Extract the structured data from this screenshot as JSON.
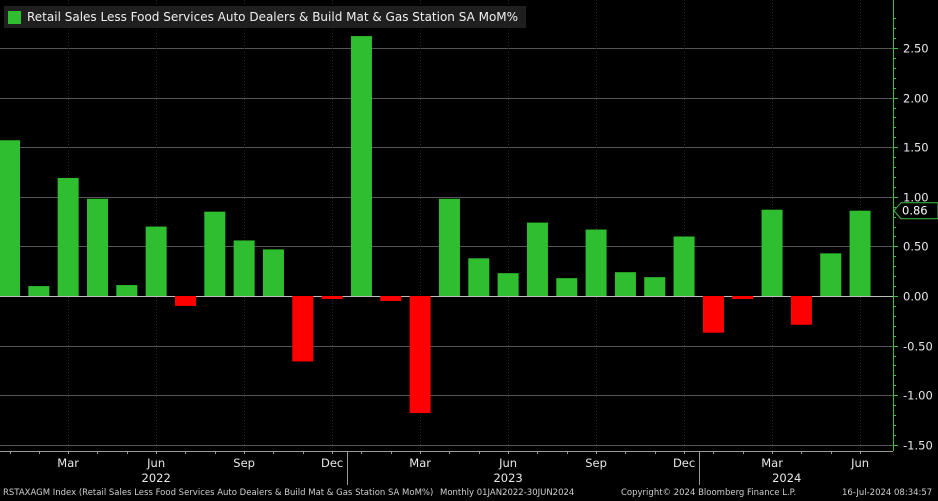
{
  "chart_data": {
    "type": "bar",
    "title": "Retail Sales Less Food Services Auto Dealers & Build Mat & Gas Station SA MoM%",
    "series_name": "Retail Sales Less Food Services Auto Dealers & Build Mat & Gas Station SA MoM%",
    "categories": [
      "Jan 2022",
      "Feb 2022",
      "Mar 2022",
      "Apr 2022",
      "May 2022",
      "Jun 2022",
      "Jul 2022",
      "Aug 2022",
      "Sep 2022",
      "Oct 2022",
      "Nov 2022",
      "Dec 2022",
      "Jan 2023",
      "Feb 2023",
      "Mar 2023",
      "Apr 2023",
      "May 2023",
      "Jun 2023",
      "Jul 2023",
      "Aug 2023",
      "Sep 2023",
      "Oct 2023",
      "Nov 2023",
      "Dec 2023",
      "Jan 2024",
      "Feb 2024",
      "Mar 2024",
      "Apr 2024",
      "May 2024",
      "Jun 2024"
    ],
    "values": [
      1.57,
      0.1,
      1.19,
      0.98,
      0.11,
      0.7,
      -0.1,
      0.85,
      0.56,
      0.47,
      -0.66,
      -0.03,
      2.62,
      -0.05,
      -1.18,
      0.98,
      0.38,
      0.23,
      0.74,
      0.18,
      0.67,
      0.24,
      0.19,
      0.6,
      -0.37,
      -0.03,
      0.87,
      -0.29,
      0.43,
      0.86
    ],
    "positive_color": "#2fbe2f",
    "negative_color": "#ff0000",
    "ylim": [
      -1.5,
      3.0
    ],
    "yticks": [
      -1.5,
      -1.0,
      -0.5,
      0.0,
      0.5,
      1.0,
      1.5,
      2.0,
      2.5
    ],
    "ytick_labels": [
      "-1.50",
      "-1.00",
      "-0.50",
      "0.00",
      "0.50",
      "1.00",
      "1.50",
      "2.00",
      "2.50"
    ],
    "month_ticks": [
      {
        "index": 2,
        "label": "Mar"
      },
      {
        "index": 5,
        "label": "Jun"
      },
      {
        "index": 8,
        "label": "Sep"
      },
      {
        "index": 11,
        "label": "Dec"
      },
      {
        "index": 14,
        "label": "Mar"
      },
      {
        "index": 17,
        "label": "Jun"
      },
      {
        "index": 20,
        "label": "Sep"
      },
      {
        "index": 23,
        "label": "Dec"
      },
      {
        "index": 26,
        "label": "Mar"
      },
      {
        "index": 29,
        "label": "Jun"
      }
    ],
    "year_labels": [
      {
        "index": 5,
        "label": "2022"
      },
      {
        "index": 17,
        "label": "2023"
      },
      {
        "index": 26.5,
        "label": "2024"
      }
    ],
    "last_value_label": "0.86",
    "grid": true
  },
  "legend": {
    "label": "Retail Sales Less Food Services Auto Dealers & Build Mat & Gas Station SA MoM%",
    "color": "#2fbe2f"
  },
  "footer": {
    "ticker": "RSTAXAGM Index (Retail Sales Less Food Services Auto Dealers & Build Mat & Gas Station SA MoM%)",
    "range": "Monthly 01JAN2022-30JUN2024",
    "copyright": "Copyright© 2024 Bloomberg Finance L.P.",
    "timestamp": "16-Jul-2024 08:34:57"
  }
}
